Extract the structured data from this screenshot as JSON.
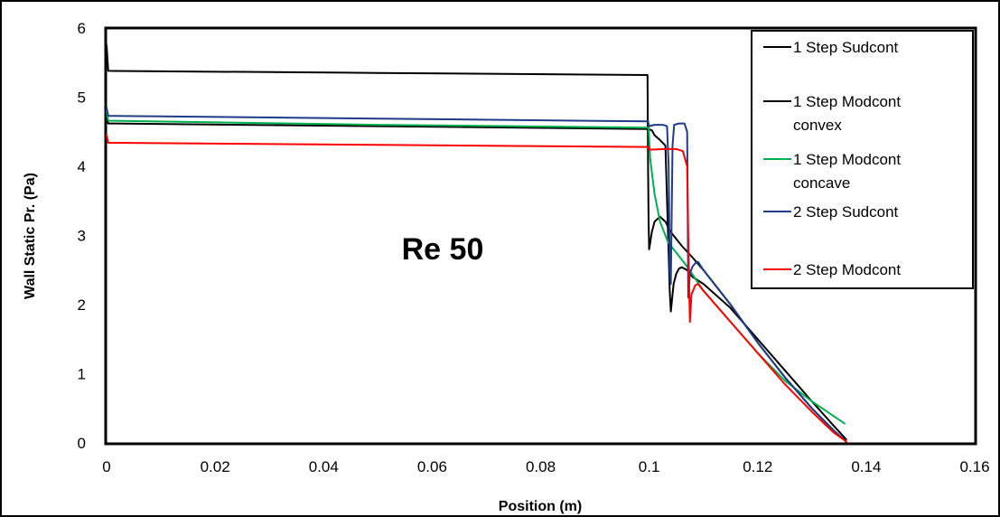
{
  "chart_data": {
    "type": "line",
    "title": "",
    "xlabel": "Position (m)",
    "ylabel": "Wall Static Pr. (Pa)",
    "xlim": [
      0,
      0.16
    ],
    "ylim": [
      0,
      6
    ],
    "x_ticks": [
      "0",
      "0.02",
      "0.04",
      "0.06",
      "0.08",
      "0.1",
      "0.12",
      "0.14",
      "0.16"
    ],
    "y_ticks": [
      "0",
      "1",
      "2",
      "3",
      "4",
      "5",
      "6"
    ],
    "grid": false,
    "legend_position": "top-right",
    "annotations": [
      {
        "text": "Re 50"
      }
    ],
    "series": [
      {
        "name": "1 Step Sudcont",
        "legend_lines": [
          "1 Step Sudcont"
        ],
        "color": "#000000",
        "x": [
          0,
          0.0003,
          0.05,
          0.0997,
          0.0998,
          0.0999,
          0.1,
          0.1005,
          0.101,
          0.102,
          0.103,
          0.104,
          0.106,
          0.108,
          0.11,
          0.115,
          0.12,
          0.125,
          0.13,
          0.134,
          0.1363
        ],
        "y": [
          5.75,
          5.38,
          5.35,
          5.32,
          4.0,
          3.2,
          2.8,
          3.05,
          3.2,
          3.27,
          3.2,
          3.05,
          2.85,
          2.68,
          2.5,
          2.0,
          1.45,
          0.95,
          0.5,
          0.18,
          0.02
        ]
      },
      {
        "name": "1 Step Modcont convex",
        "legend_lines": [
          "1 Step Modcont",
          "convex"
        ],
        "color": "#000000",
        "x": [
          0,
          0.0003,
          0.05,
          0.0998,
          0.1005,
          0.101,
          0.102,
          0.103,
          0.1035,
          0.1038,
          0.104,
          0.1045,
          0.105,
          0.1055,
          0.106,
          0.107,
          0.108,
          0.11,
          0.115,
          0.12,
          0.125,
          0.13,
          0.134,
          0.1363
        ],
        "y": [
          4.72,
          4.62,
          4.58,
          4.54,
          4.52,
          4.45,
          4.38,
          4.3,
          3.0,
          2.2,
          1.9,
          2.3,
          2.45,
          2.52,
          2.54,
          2.5,
          2.4,
          2.3,
          1.95,
          1.5,
          1.05,
          0.6,
          0.25,
          0.05
        ]
      },
      {
        "name": "1 Step Modcont concave",
        "legend_lines": [
          "1 Step Modcont",
          "concave"
        ],
        "color": "#00b050",
        "x": [
          0,
          0.0003,
          0.05,
          0.0999,
          0.1002,
          0.101,
          0.102,
          0.1035,
          0.105,
          0.107,
          0.11,
          0.115,
          0.12,
          0.125,
          0.13,
          0.136
        ],
        "y": [
          4.8,
          4.66,
          4.6,
          4.56,
          4.1,
          3.6,
          3.2,
          2.9,
          2.75,
          2.55,
          2.2,
          1.75,
          1.3,
          0.9,
          0.6,
          0.28
        ]
      },
      {
        "name": "2 Step Sudcont",
        "legend_lines": [
          "2 Step Sudcont"
        ],
        "color": "#1f3c88",
        "x": [
          0,
          0.0003,
          0.05,
          0.0998,
          0.1,
          0.101,
          0.1025,
          0.1033,
          0.1036,
          0.1038,
          0.104,
          0.1043,
          0.1046,
          0.1055,
          0.1065,
          0.107,
          0.1072,
          0.1075,
          0.108,
          0.1085,
          0.109,
          0.11,
          0.115,
          0.12,
          0.125,
          0.13,
          0.134,
          0.1363
        ],
        "y": [
          4.85,
          4.73,
          4.69,
          4.65,
          4.58,
          4.6,
          4.6,
          4.58,
          4.0,
          2.5,
          2.3,
          4.3,
          4.6,
          4.62,
          4.62,
          4.5,
          2.1,
          2.45,
          2.55,
          2.6,
          2.62,
          2.5,
          2.0,
          1.45,
          0.95,
          0.5,
          0.18,
          0.02
        ]
      },
      {
        "name": "2 Step Modcont",
        "legend_lines": [
          "2 Step Modcont"
        ],
        "color": "#ff0000",
        "x": [
          0,
          0.0003,
          0.05,
          0.0999,
          0.1,
          0.103,
          0.105,
          0.1062,
          0.107,
          0.1073,
          0.1075,
          0.1078,
          0.1085,
          0.109,
          0.11,
          0.115,
          0.12,
          0.125,
          0.13,
          0.134,
          0.1363
        ],
        "y": [
          4.45,
          4.34,
          4.31,
          4.28,
          4.24,
          4.25,
          4.25,
          4.22,
          4.0,
          2.5,
          1.75,
          2.15,
          2.28,
          2.3,
          2.2,
          1.75,
          1.3,
          0.85,
          0.45,
          0.15,
          0.02
        ]
      }
    ]
  }
}
